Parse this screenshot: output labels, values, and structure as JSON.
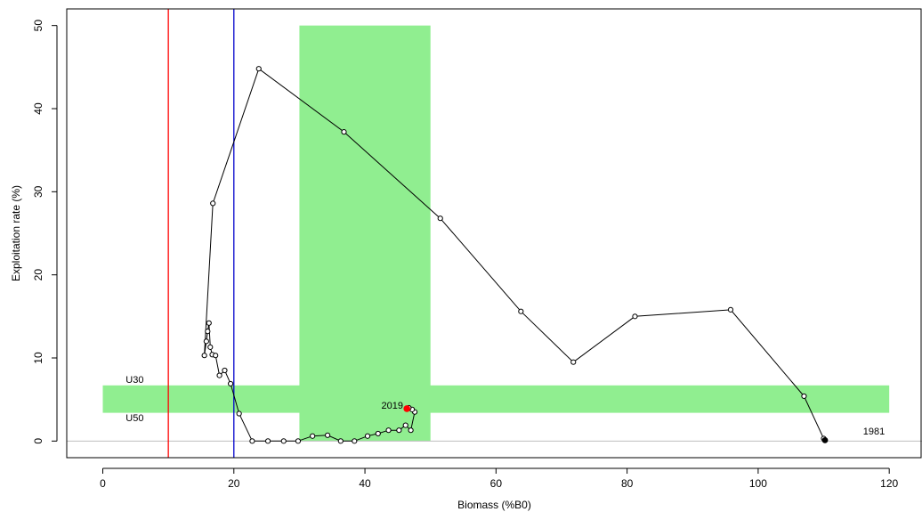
{
  "chart_data": {
    "type": "scatter",
    "title": "",
    "xlabel": "Biomass (%B0)",
    "ylabel": "Exploitation rate (%)",
    "xlim": [
      -5.5,
      125
    ],
    "ylim": [
      -2,
      52
    ],
    "xticks": [
      0,
      20,
      40,
      60,
      80,
      100,
      120
    ],
    "yticks": [
      0,
      10,
      20,
      30,
      40,
      50
    ],
    "grid": false,
    "legend": "none",
    "colors": {
      "band": "#90EE90",
      "limit_line": "#FF0000",
      "soft_line": "#0000CC",
      "zero_line": "#BEBEBE",
      "trajectory": "#000000",
      "current_point": "#FF0000"
    },
    "reference_lines": {
      "hard_limit_x": 10,
      "soft_limit_x": 20,
      "zero_y": 0
    },
    "target_biomass_band": {
      "x": [
        30,
        50
      ],
      "y": [
        0,
        50
      ]
    },
    "exploitation_band": {
      "x": [
        0,
        120
      ],
      "y": [
        3.4,
        6.7
      ]
    },
    "annotations": [
      {
        "text": "U30",
        "x": 3.5,
        "y": 7.0
      },
      {
        "text": "U50",
        "x": 3.5,
        "y": 2.4
      },
      {
        "text": "2019",
        "x": 42.5,
        "y": 3.9
      },
      {
        "text": "1981",
        "x": 116,
        "y": 0.8
      }
    ],
    "series": [
      {
        "points": [
          [
            110.2,
            0.1
          ],
          [
            110.0,
            0.3
          ],
          [
            107.0,
            5.4
          ],
          [
            95.8,
            15.8
          ],
          [
            81.2,
            15.0
          ],
          [
            71.8,
            9.5
          ],
          [
            63.8,
            15.6
          ],
          [
            51.5,
            26.8
          ],
          [
            36.8,
            37.2
          ],
          [
            23.8,
            44.8
          ],
          [
            16.8,
            28.6
          ],
          [
            15.5,
            10.3
          ],
          [
            15.8,
            12.0
          ],
          [
            16.0,
            13.2
          ],
          [
            16.2,
            14.2
          ],
          [
            16.4,
            11.3
          ],
          [
            16.7,
            10.4
          ],
          [
            17.2,
            10.3
          ],
          [
            17.8,
            7.9
          ],
          [
            18.6,
            8.5
          ],
          [
            19.5,
            6.9
          ],
          [
            20.8,
            3.3
          ],
          [
            22.8,
            0.0
          ],
          [
            25.2,
            0.0
          ],
          [
            27.6,
            0.0
          ],
          [
            29.8,
            0.0
          ],
          [
            32.0,
            0.6
          ],
          [
            34.3,
            0.7
          ],
          [
            36.3,
            0.0
          ],
          [
            38.4,
            0.0
          ],
          [
            40.4,
            0.6
          ],
          [
            42.0,
            0.9
          ],
          [
            43.6,
            1.3
          ],
          [
            45.2,
            1.3
          ],
          [
            46.2,
            1.9
          ],
          [
            47.0,
            1.3
          ],
          [
            47.6,
            3.5
          ],
          [
            47.2,
            3.8
          ],
          [
            46.7,
            4.0
          ],
          [
            46.4,
            3.9
          ]
        ],
        "start_label": "1981",
        "end_label": "2019"
      }
    ]
  }
}
